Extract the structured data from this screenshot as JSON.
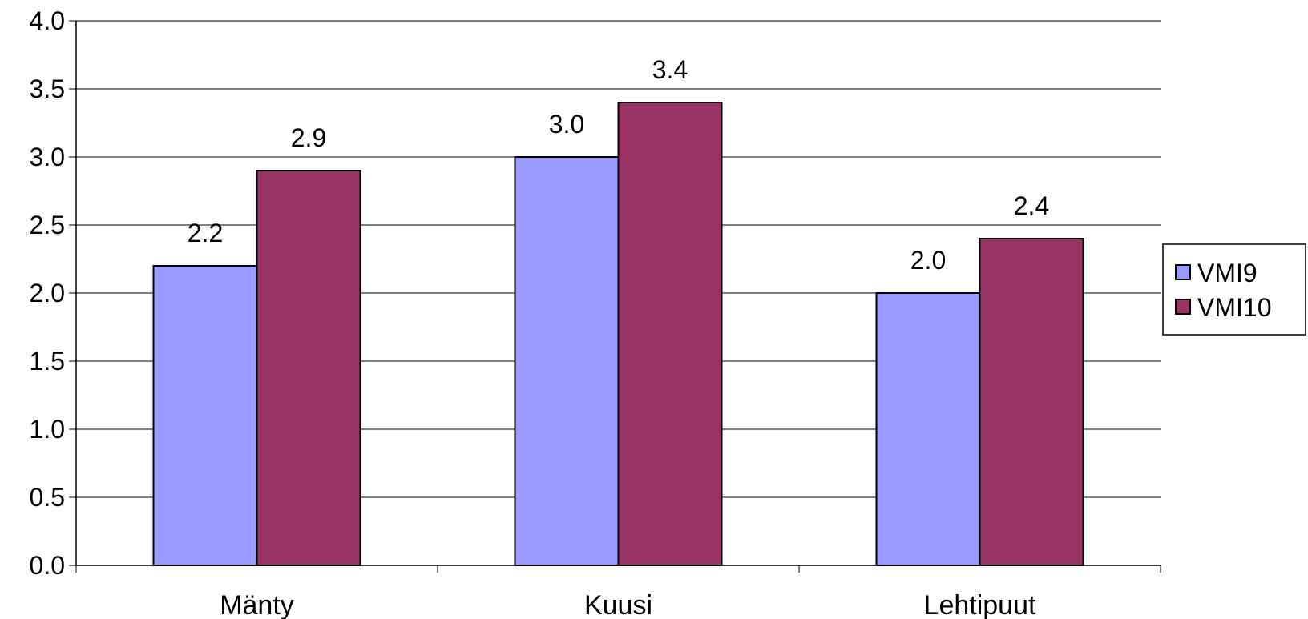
{
  "chart_data": {
    "type": "bar",
    "title": "",
    "xlabel": "",
    "ylabel": "",
    "categories": [
      "Mänty",
      "Kuusi",
      "Lehtipuut"
    ],
    "series": [
      {
        "name": "VMI9",
        "values": [
          2.2,
          3.0,
          2.0
        ],
        "labels": [
          "2.2",
          "3.0",
          "2.0"
        ],
        "color": "#9999FF"
      },
      {
        "name": "VMI10",
        "values": [
          2.9,
          3.4,
          2.4
        ],
        "labels": [
          "2.9",
          "3.4",
          "2.4"
        ],
        "color": "#993366"
      }
    ],
    "ylim": [
      0,
      4
    ],
    "yticks": [
      "0.0",
      "0.5",
      "1.0",
      "1.5",
      "2.0",
      "2.5",
      "3.0",
      "3.5",
      "4.0"
    ],
    "grid": true,
    "legend_position": "right"
  }
}
